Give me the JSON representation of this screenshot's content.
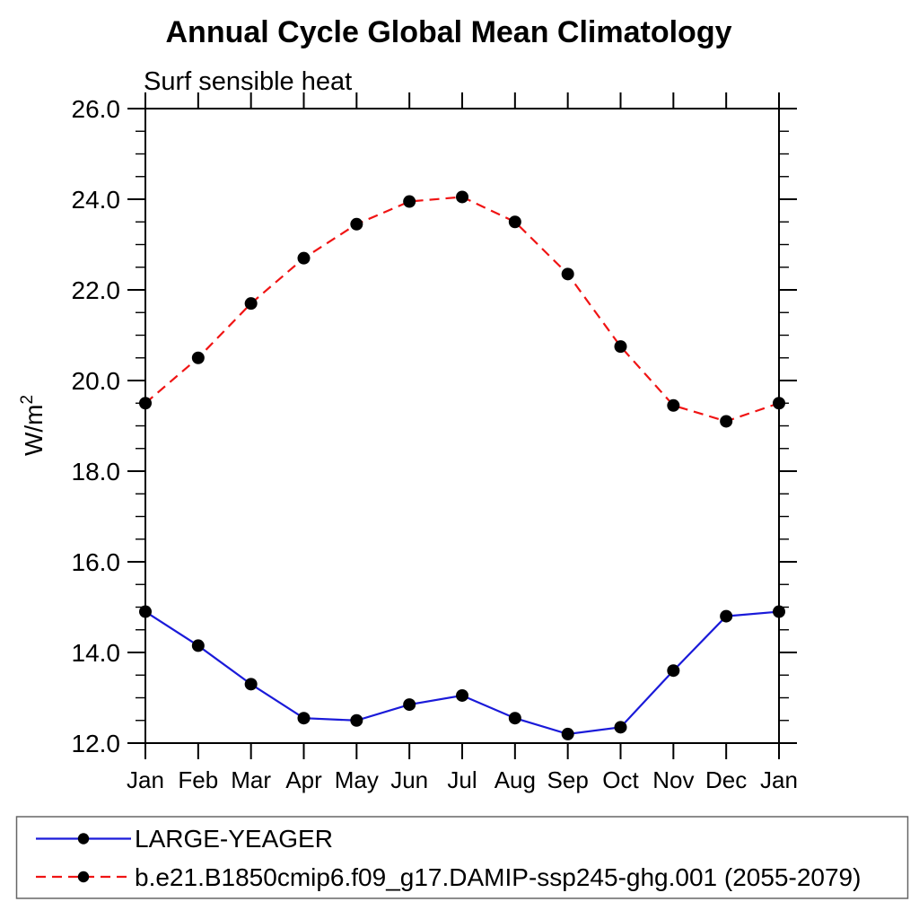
{
  "chart_data": {
    "type": "line",
    "title": "Annual Cycle Global Mean Climatology",
    "subtitle": "Surf sensible heat",
    "xlabel": "",
    "ylabel": "W/m²",
    "ylabel_base": "W/m",
    "ylabel_sup": "2",
    "categories": [
      "Jan",
      "Feb",
      "Mar",
      "Apr",
      "May",
      "Jun",
      "Jul",
      "Aug",
      "Sep",
      "Oct",
      "Nov",
      "Dec",
      "Jan"
    ],
    "ylim": [
      12.0,
      26.0
    ],
    "ytick_values": [
      12,
      14,
      16,
      18,
      20,
      22,
      24,
      26
    ],
    "ytick_labels": [
      "12.0",
      "14.0",
      "16.0",
      "18.0",
      "20.0",
      "22.0",
      "24.0",
      "26.0"
    ],
    "y_minor_step": 0.5,
    "grid": false,
    "legend_position": "bottom-left-box",
    "marker": "filled-circle",
    "marker_color": "#000000",
    "axis_color": "#000000",
    "series": [
      {
        "name": "LARGE-YEAGER",
        "color": "#1a1ad9",
        "line_style": "solid",
        "values": [
          14.9,
          14.15,
          13.3,
          12.55,
          12.5,
          12.85,
          13.05,
          12.55,
          12.2,
          12.35,
          13.6,
          14.8,
          14.9
        ]
      },
      {
        "name": "b.e21.B1850cmip6.f09_g17.DAMIP-ssp245-ghg.001 (2055-2079)",
        "color": "#f01414",
        "line_style": "dashed",
        "values": [
          19.5,
          20.5,
          21.7,
          22.7,
          23.45,
          23.95,
          24.05,
          23.5,
          22.35,
          20.75,
          19.45,
          19.1,
          19.5
        ]
      }
    ]
  }
}
